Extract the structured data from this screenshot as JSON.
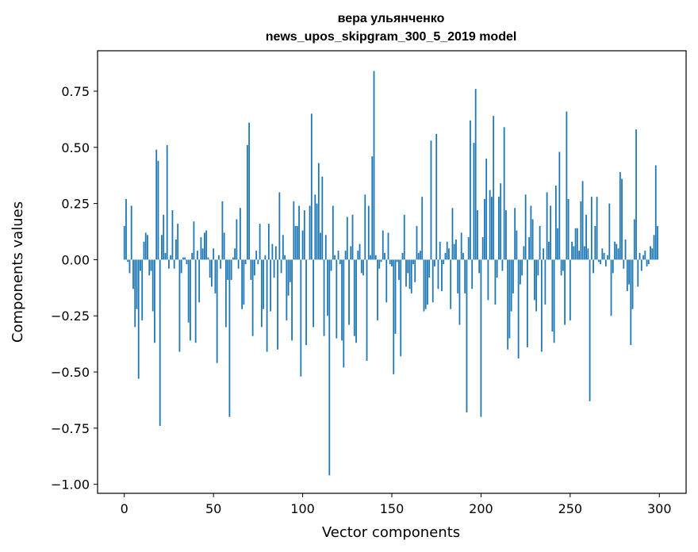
{
  "chart_data": {
    "type": "bar",
    "title": "вера ульянченко",
    "subtitle": "news_upos_skipgram_300_5_2019 model",
    "xlabel": "Vector components",
    "ylabel": "Components values",
    "xlim": [
      -15,
      315
    ],
    "ylim": [
      -1.04,
      0.93
    ],
    "xticks": [
      0,
      50,
      100,
      150,
      200,
      250,
      300
    ],
    "xtick_labels": [
      "0",
      "50",
      "100",
      "150",
      "200",
      "250",
      "300"
    ],
    "yticks": [
      -1.0,
      -0.75,
      -0.5,
      -0.25,
      0.0,
      0.25,
      0.5,
      0.75
    ],
    "ytick_labels": [
      "−1.00",
      "−0.75",
      "−0.50",
      "−0.25",
      "0.00",
      "0.25",
      "0.50",
      "0.75"
    ],
    "grid": false,
    "bar_color": "#1f77b4",
    "values": [
      0.15,
      0.27,
      -0.01,
      -0.06,
      0.24,
      -0.13,
      -0.3,
      -0.22,
      -0.53,
      -0.05,
      -0.27,
      0.08,
      0.12,
      0.11,
      -0.07,
      -0.05,
      -0.23,
      -0.37,
      0.49,
      0.44,
      -0.74,
      0.11,
      0.2,
      0.03,
      0.51,
      -0.04,
      0.02,
      0.22,
      -0.04,
      0.09,
      0.16,
      -0.41,
      -0.06,
      0.01,
      0.01,
      -0.02,
      -0.28,
      -0.36,
      0.03,
      0.17,
      -0.37,
      0.04,
      -0.19,
      0.1,
      0.05,
      0.12,
      0.13,
      0.01,
      -0.08,
      -0.12,
      0.05,
      -0.15,
      -0.46,
      0.02,
      -0.04,
      0.26,
      0.12,
      -0.3,
      -0.09,
      -0.7,
      -0.09,
      0.01,
      0.05,
      0.18,
      -0.04,
      0.23,
      -0.22,
      -0.2,
      -0.02,
      0.51,
      0.61,
      -0.09,
      -0.34,
      -0.07,
      0.04,
      -0.02,
      0.16,
      -0.3,
      -0.22,
      0.02,
      -0.41,
      0.16,
      -0.23,
      0.07,
      -0.08,
      0.06,
      -0.4,
      0.3,
      -0.06,
      0.11,
      0.02,
      -0.27,
      -0.16,
      -0.1,
      -0.36,
      0.26,
      0.15,
      0.15,
      0.24,
      -0.52,
      0.13,
      0.22,
      -0.38,
      0.0,
      0.24,
      0.65,
      -0.3,
      0.29,
      0.25,
      0.43,
      0.12,
      0.37,
      -0.34,
      0.11,
      -0.25,
      -0.96,
      -0.05,
      0.24,
      0.02,
      -0.35,
      0.04,
      -0.02,
      -0.36,
      -0.48,
      0.04,
      0.19,
      -0.29,
      0.06,
      0.2,
      -0.34,
      -0.37,
      0.04,
      0.07,
      -0.06,
      -0.07,
      0.29,
      -0.45,
      0.24,
      0.02,
      0.46,
      0.84,
      0.02,
      -0.27,
      -0.04,
      -0.01,
      0.13,
      0.03,
      -0.19,
      0.12,
      -0.02,
      -0.03,
      -0.51,
      -0.33,
      -0.01,
      -0.09,
      -0.43,
      0.03,
      0.2,
      -0.12,
      -0.06,
      -0.13,
      -0.15,
      -0.02,
      -0.1,
      0.15,
      0.03,
      0.04,
      0.28,
      -0.23,
      -0.22,
      -0.2,
      -0.08,
      0.53,
      -0.19,
      -0.03,
      0.56,
      -0.13,
      0.08,
      -0.14,
      -0.02,
      0.03,
      0.08,
      0.05,
      -0.22,
      0.23,
      0.07,
      0.09,
      -0.15,
      -0.29,
      0.12,
      0.03,
      -0.15,
      -0.68,
      0.1,
      0.62,
      -0.13,
      0.52,
      0.76,
      0.22,
      -0.06,
      -0.7,
      0.1,
      0.27,
      0.45,
      -0.18,
      0.31,
      0.28,
      0.64,
      -0.2,
      -0.08,
      0.28,
      0.34,
      -0.05,
      0.59,
      0.22,
      -0.4,
      -0.35,
      -0.23,
      -0.15,
      0.23,
      0.13,
      -0.44,
      -0.11,
      -0.07,
      0.06,
      0.29,
      -0.39,
      0.1,
      0.24,
      0.18,
      -0.18,
      -0.23,
      -0.07,
      0.15,
      -0.41,
      0.05,
      -0.2,
      0.3,
      0.08,
      0.24,
      -0.32,
      -0.37,
      0.33,
      0.14,
      0.48,
      -0.07,
      -0.05,
      -0.29,
      0.66,
      0.27,
      -0.27,
      0.08,
      0.06,
      0.14,
      0.14,
      0.04,
      0.26,
      0.35,
      0.06,
      0.2,
      0.05,
      -0.63,
      0.28,
      -0.06,
      0.15,
      0.28,
      -0.01,
      -0.02,
      0.05,
      0.03,
      -0.03,
      0.02,
      0.25,
      -0.25,
      -0.06,
      0.08,
      0.07,
      0.05,
      0.39,
      0.36,
      -0.04,
      0.09,
      -0.14,
      -0.11,
      -0.38,
      -0.22,
      0.18,
      0.58,
      -0.12,
      0.03,
      -0.05,
      0.02,
      0.04,
      -0.03,
      -0.02,
      0.06,
      0.05,
      0.11,
      0.42,
      0.15
    ]
  }
}
